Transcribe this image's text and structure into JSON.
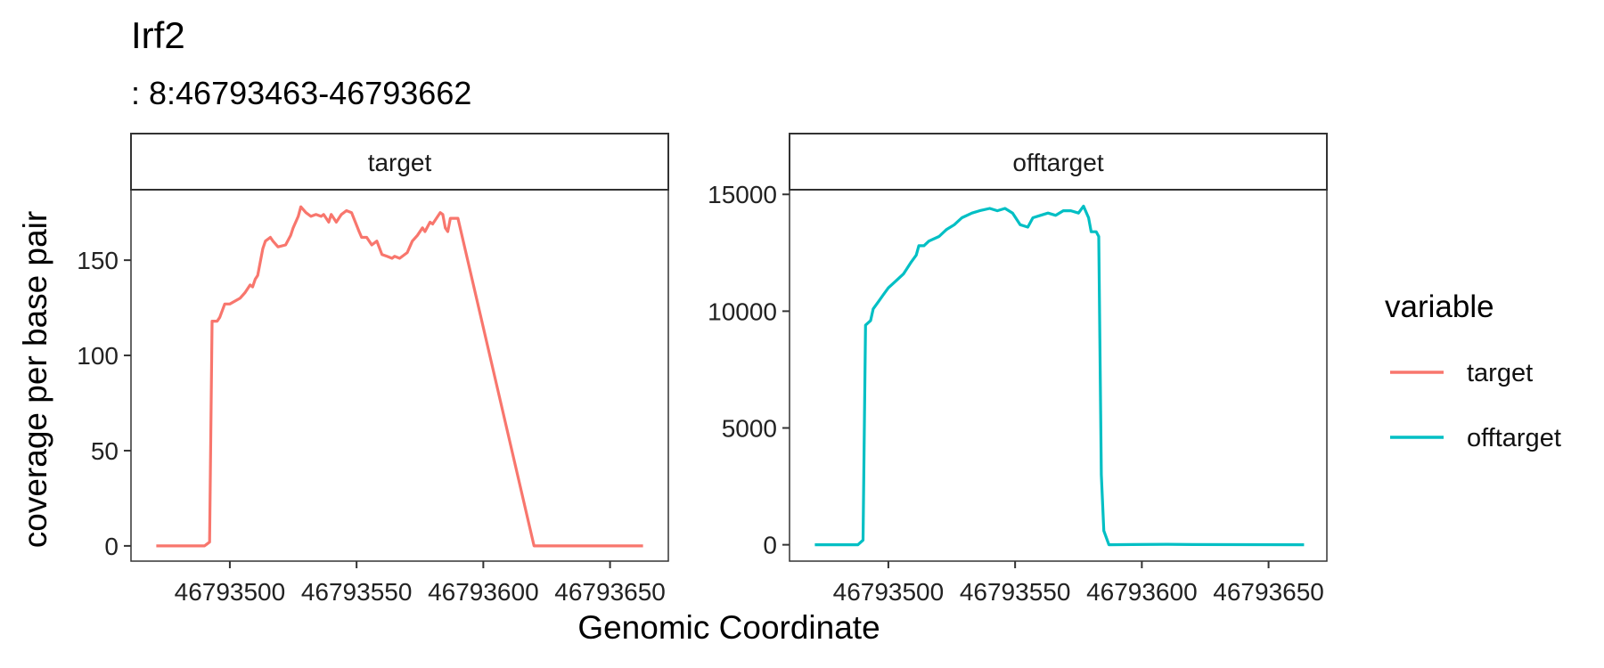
{
  "title": "Irf2",
  "subtitle": ": 8:46793463-46793662",
  "xlabel": "Genomic Coordinate",
  "ylabel": "coverage per base pair",
  "legend": {
    "title": "variable",
    "position": "right",
    "items": [
      {
        "label": "target",
        "color": "#F8766D"
      },
      {
        "label": "offtarget",
        "color": "#00BFC4"
      }
    ]
  },
  "chart_data": [
    {
      "type": "line",
      "panel": "target",
      "color": "#F8766D",
      "xlim": [
        46793461,
        46793673
      ],
      "ylim": [
        -8,
        187
      ],
      "xticks": [
        46793500,
        46793550,
        46793600,
        46793650
      ],
      "xtick_labels": [
        "46793500",
        "46793550",
        "46793600",
        "46793650"
      ],
      "yticks": [
        0,
        50,
        100,
        150
      ],
      "ytick_labels": [
        "0",
        "50",
        "100",
        "150"
      ],
      "x": [
        46793471,
        46793490,
        46793491,
        46793492,
        46793493,
        46793495,
        46793496,
        46793498,
        46793500,
        46793504,
        46793506,
        46793508,
        46793509,
        46793510,
        46793511,
        46793513,
        46793514,
        46793516,
        46793517,
        46793519,
        46793522,
        46793524,
        46793525,
        46793527,
        46793528,
        46793530,
        46793532,
        46793534,
        46793536,
        46793537,
        46793539,
        46793540,
        46793542,
        46793544,
        46793546,
        46793548,
        46793551,
        46793552,
        46793554,
        46793556,
        46793558,
        46793560,
        46793562,
        46793564,
        46793565,
        46793567,
        46793570,
        46793572,
        46793574,
        46793576,
        46793577,
        46793579,
        46793580,
        46793583,
        46793584,
        46793585,
        46793586,
        46793587,
        46793590,
        46793620,
        46793663
      ],
      "y": [
        0,
        0,
        1,
        2,
        118,
        118,
        120,
        127,
        127,
        130,
        133,
        137,
        136,
        140,
        142,
        156,
        160,
        162,
        160,
        157,
        158,
        163,
        167,
        173,
        178,
        175,
        173,
        174,
        173,
        174,
        170,
        174,
        170,
        174,
        176,
        175,
        165,
        162,
        162,
        158,
        160,
        153,
        152,
        151,
        152,
        151,
        154,
        160,
        163,
        167,
        165,
        170,
        169,
        175,
        174,
        167,
        165,
        172,
        172,
        0,
        0
      ]
    },
    {
      "type": "line",
      "panel": "offtarget",
      "color": "#00BFC4",
      "xlim": [
        46793461,
        46793673
      ],
      "ylim": [
        -700,
        15200
      ],
      "xticks": [
        46793500,
        46793550,
        46793600,
        46793650
      ],
      "xtick_labels": [
        "46793500",
        "46793550",
        "46793600",
        "46793650"
      ],
      "yticks": [
        0,
        5000,
        10000,
        15000
      ],
      "ytick_labels": [
        "0",
        "5000",
        "10000",
        "15000"
      ],
      "x": [
        46793471,
        46793488,
        46793490,
        46793491,
        46793493,
        46793494,
        46793496,
        46793498,
        46793500,
        46793503,
        46793506,
        46793509,
        46793511,
        46793512,
        46793514,
        46793516,
        46793520,
        46793523,
        46793526,
        46793529,
        46793533,
        46793536,
        46793540,
        46793543,
        46793546,
        46793549,
        46793552,
        46793555,
        46793557,
        46793560,
        46793563,
        46793566,
        46793569,
        46793572,
        46793575,
        46793577,
        46793579,
        46793580,
        46793582,
        46793583,
        46793584,
        46793585,
        46793587,
        46793610,
        46793620,
        46793664
      ],
      "y": [
        0,
        0,
        200,
        9400,
        9600,
        10100,
        10400,
        10700,
        11000,
        11300,
        11600,
        12100,
        12400,
        12800,
        12800,
        13000,
        13200,
        13500,
        13700,
        14000,
        14200,
        14300,
        14400,
        14300,
        14400,
        14200,
        13700,
        13600,
        14000,
        14100,
        14200,
        14100,
        14300,
        14300,
        14200,
        14500,
        14000,
        13400,
        13400,
        13200,
        3000,
        600,
        0,
        20,
        10,
        0
      ]
    }
  ]
}
